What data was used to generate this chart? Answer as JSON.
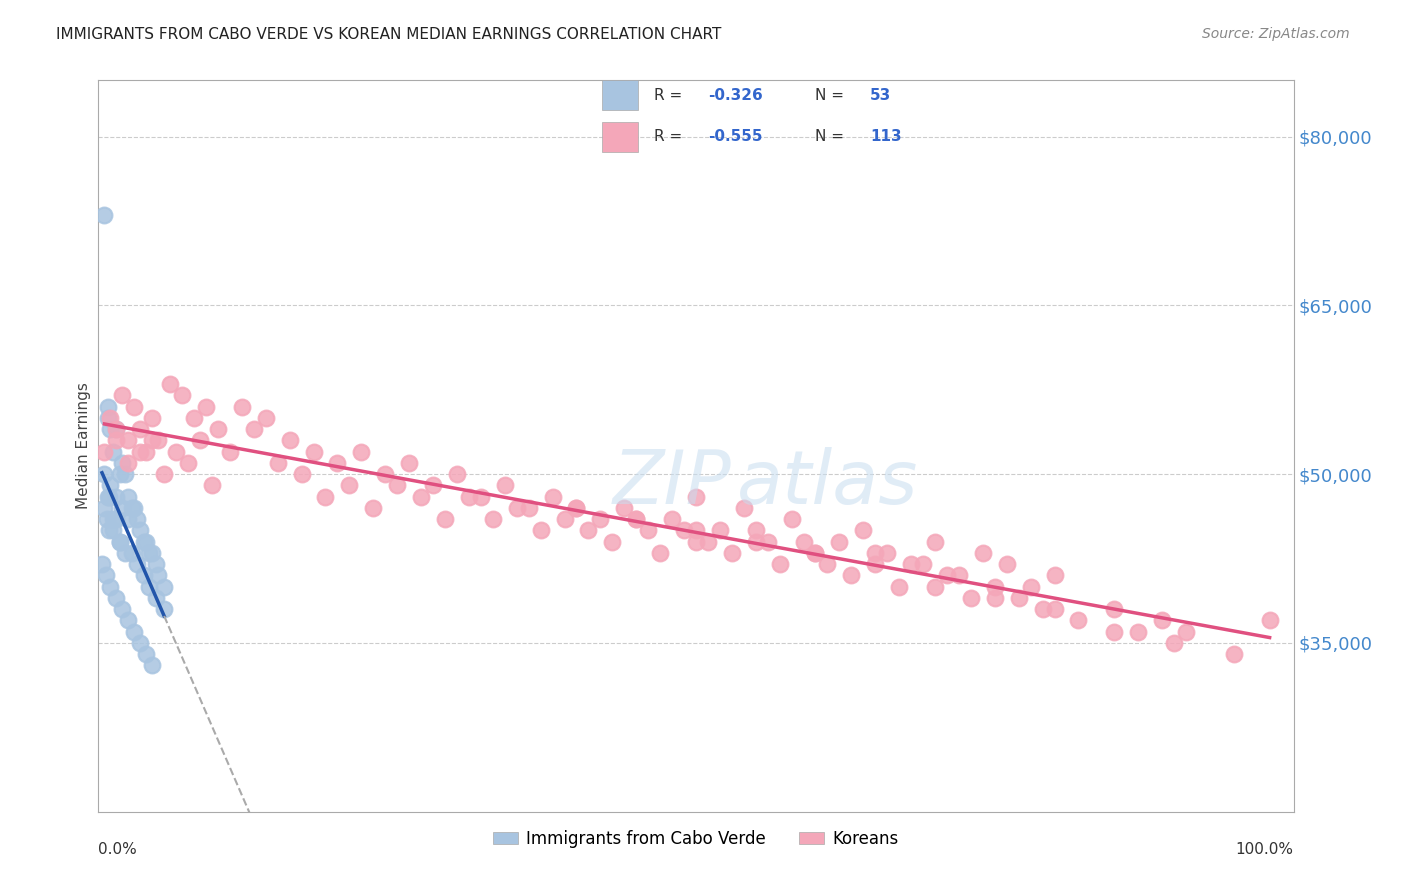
{
  "title": "IMMIGRANTS FROM CABO VERDE VS KOREAN MEDIAN EARNINGS CORRELATION CHART",
  "source": "Source: ZipAtlas.com",
  "ylabel": "Median Earnings",
  "ytick_labels": [
    "$35,000",
    "$50,000",
    "$65,000",
    "$80,000"
  ],
  "ytick_values": [
    35000,
    50000,
    65000,
    80000
  ],
  "ymin": 20000,
  "ymax": 85000,
  "xmin": 0.0,
  "xmax": 1.0,
  "cabo_verde_color": "#a8c4e0",
  "korean_color": "#f4a7b9",
  "cabo_verde_trend_color": "#2255aa",
  "korean_trend_color": "#e05080",
  "dashed_ext_color": "#aaaaaa",
  "grid_color": "#cccccc",
  "cabo_verde_x": [
    0.005,
    0.008,
    0.01,
    0.012,
    0.015,
    0.018,
    0.02,
    0.022,
    0.025,
    0.028,
    0.03,
    0.032,
    0.035,
    0.038,
    0.04,
    0.042,
    0.045,
    0.048,
    0.05,
    0.055,
    0.008,
    0.01,
    0.015,
    0.02,
    0.025,
    0.005,
    0.007,
    0.009,
    0.012,
    0.018,
    0.022,
    0.028,
    0.032,
    0.038,
    0.042,
    0.048,
    0.055,
    0.003,
    0.006,
    0.01,
    0.015,
    0.02,
    0.025,
    0.03,
    0.035,
    0.04,
    0.045,
    0.008,
    0.012,
    0.018,
    0.005,
    0.009,
    0.015
  ],
  "cabo_verde_y": [
    73000,
    55000,
    54000,
    52000,
    54000,
    50000,
    51000,
    50000,
    48000,
    47000,
    47000,
    46000,
    45000,
    44000,
    44000,
    43000,
    43000,
    42000,
    41000,
    40000,
    56000,
    49000,
    48000,
    47000,
    46000,
    47000,
    46000,
    45000,
    45000,
    44000,
    43000,
    43000,
    42000,
    41000,
    40000,
    39000,
    38000,
    42000,
    41000,
    40000,
    39000,
    38000,
    37000,
    36000,
    35000,
    34000,
    33000,
    48000,
    46000,
    44000,
    50000,
    48000,
    46000
  ],
  "korean_x": [
    0.005,
    0.01,
    0.015,
    0.02,
    0.025,
    0.03,
    0.035,
    0.04,
    0.045,
    0.05,
    0.06,
    0.07,
    0.08,
    0.09,
    0.1,
    0.12,
    0.14,
    0.16,
    0.18,
    0.2,
    0.22,
    0.24,
    0.26,
    0.28,
    0.3,
    0.32,
    0.34,
    0.36,
    0.38,
    0.4,
    0.42,
    0.44,
    0.46,
    0.48,
    0.5,
    0.52,
    0.54,
    0.56,
    0.58,
    0.6,
    0.62,
    0.64,
    0.66,
    0.68,
    0.7,
    0.72,
    0.74,
    0.76,
    0.78,
    0.8,
    0.015,
    0.025,
    0.035,
    0.045,
    0.055,
    0.065,
    0.075,
    0.085,
    0.095,
    0.11,
    0.13,
    0.15,
    0.17,
    0.19,
    0.21,
    0.23,
    0.25,
    0.27,
    0.29,
    0.31,
    0.33,
    0.35,
    0.37,
    0.39,
    0.41,
    0.43,
    0.45,
    0.47,
    0.49,
    0.51,
    0.53,
    0.55,
    0.57,
    0.59,
    0.61,
    0.63,
    0.65,
    0.67,
    0.69,
    0.71,
    0.73,
    0.75,
    0.77,
    0.79,
    0.82,
    0.85,
    0.87,
    0.89,
    0.91,
    0.5,
    0.55,
    0.6,
    0.65,
    0.7,
    0.75,
    0.8,
    0.85,
    0.9,
    0.95,
    0.98,
    0.4,
    0.45,
    0.5
  ],
  "korean_y": [
    52000,
    55000,
    54000,
    57000,
    53000,
    56000,
    54000,
    52000,
    55000,
    53000,
    58000,
    57000,
    55000,
    56000,
    54000,
    56000,
    55000,
    53000,
    52000,
    51000,
    52000,
    50000,
    51000,
    49000,
    50000,
    48000,
    49000,
    47000,
    48000,
    47000,
    46000,
    47000,
    45000,
    46000,
    48000,
    45000,
    47000,
    44000,
    46000,
    43000,
    44000,
    45000,
    43000,
    42000,
    44000,
    41000,
    43000,
    42000,
    40000,
    41000,
    53000,
    51000,
    52000,
    53000,
    50000,
    52000,
    51000,
    53000,
    49000,
    52000,
    54000,
    51000,
    50000,
    48000,
    49000,
    47000,
    49000,
    48000,
    46000,
    48000,
    46000,
    47000,
    45000,
    46000,
    45000,
    44000,
    46000,
    43000,
    45000,
    44000,
    43000,
    45000,
    42000,
    44000,
    42000,
    41000,
    43000,
    40000,
    42000,
    41000,
    39000,
    40000,
    39000,
    38000,
    37000,
    38000,
    36000,
    37000,
    36000,
    45000,
    44000,
    43000,
    42000,
    40000,
    39000,
    38000,
    36000,
    35000,
    34000,
    37000,
    47000,
    46000,
    44000
  ]
}
